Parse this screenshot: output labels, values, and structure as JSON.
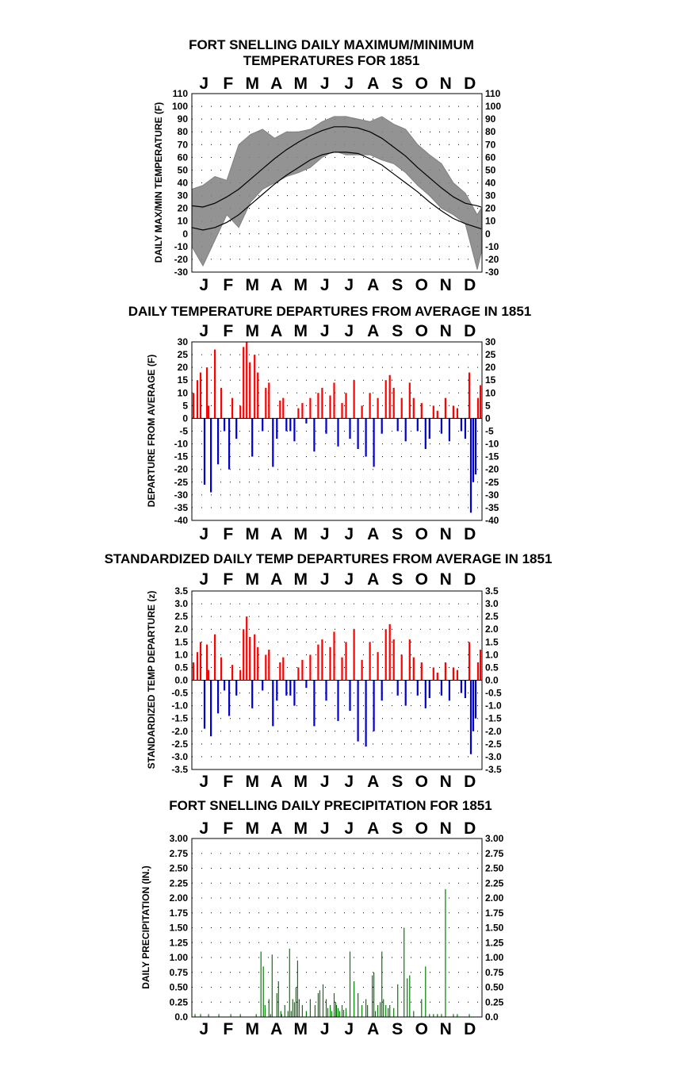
{
  "colors": {
    "positive": "#ff0000",
    "negative": "#0000cc",
    "temperature": "#808080",
    "precip": "#008000",
    "grid": "#000000"
  },
  "months": [
    "J",
    "F",
    "M",
    "A",
    "M",
    "J",
    "J",
    "A",
    "S",
    "O",
    "N",
    "D"
  ],
  "chart_data": [
    {
      "type": "line",
      "title": [
        "FORT SNELLING DAILY MAXIMUM/MINIMUM",
        "TEMPERATURES FOR 1851"
      ],
      "ylabel": "DAILY MAX/MIN TEMPERATURE (F)",
      "ylim": [
        -30,
        110
      ],
      "yticks": [
        "110",
        "100",
        "90",
        "80",
        "70",
        "60",
        "50",
        "40",
        "30",
        "20",
        "10",
        "0",
        "-10",
        "-20",
        "-30"
      ],
      "grid": "dotted",
      "x_unit": "day of year",
      "series": [
        {
          "name": "",
          "role": "average max",
          "x": [
            1,
            15,
            30,
            45,
            60,
            75,
            90,
            105,
            120,
            135,
            150,
            165,
            180,
            195,
            210,
            225,
            240,
            255,
            270,
            285,
            300,
            315,
            330,
            345,
            360,
            365
          ],
          "values": [
            22,
            21,
            24,
            29,
            35,
            43,
            51,
            59,
            66,
            72,
            77,
            81,
            84,
            84,
            83,
            80,
            75,
            68,
            61,
            52,
            44,
            36,
            29,
            24,
            22,
            21
          ]
        },
        {
          "name": "",
          "role": "average min",
          "x": [
            1,
            15,
            30,
            45,
            60,
            75,
            90,
            105,
            120,
            135,
            150,
            165,
            180,
            195,
            210,
            225,
            240,
            255,
            270,
            285,
            300,
            315,
            330,
            345,
            360,
            365
          ],
          "values": [
            5,
            3,
            5,
            9,
            15,
            23,
            31,
            39,
            46,
            52,
            58,
            62,
            64,
            64,
            63,
            59,
            54,
            47,
            40,
            33,
            25,
            18,
            12,
            8,
            5,
            4
          ]
        },
        {
          "name": "",
          "role": "observed max/min envelope",
          "x": [
            1,
            15,
            30,
            45,
            60,
            75,
            90,
            105,
            120,
            135,
            150,
            165,
            180,
            195,
            210,
            225,
            240,
            255,
            270,
            285,
            300,
            315,
            330,
            345,
            360,
            365
          ],
          "upper": [
            35,
            38,
            45,
            42,
            70,
            78,
            82,
            75,
            80,
            80,
            82,
            88,
            92,
            92,
            90,
            88,
            92,
            86,
            82,
            70,
            62,
            55,
            40,
            32,
            15,
            20
          ],
          "lower": [
            -10,
            -25,
            -5,
            15,
            5,
            25,
            35,
            40,
            45,
            48,
            52,
            60,
            65,
            62,
            62,
            62,
            58,
            55,
            48,
            38,
            30,
            20,
            15,
            8,
            -28,
            -15
          ]
        }
      ]
    },
    {
      "type": "bar",
      "title": "DAILY TEMPERATURE DEPARTURES FROM AVERAGE IN 1851",
      "ylabel": "DEPARTURE FROM AVERAGE (F)",
      "ylim": [
        -40,
        30
      ],
      "yticks": [
        "30",
        "25",
        "20",
        "15",
        "10",
        "5",
        "0",
        "-5",
        "-10",
        "-15",
        "-20",
        "-25",
        "-30",
        "-35",
        "-40"
      ],
      "grid": "dotted",
      "x_unit": "day of year",
      "x": [
        3,
        8,
        12,
        17,
        20,
        22,
        25,
        30,
        34,
        38,
        42,
        48,
        52,
        57,
        62,
        66,
        70,
        74,
        77,
        80,
        84,
        90,
        94,
        98,
        103,
        108,
        112,
        116,
        120,
        125,
        130,
        135,
        140,
        145,
        150,
        155,
        160,
        165,
        170,
        175,
        180,
        185,
        190,
        195,
        200,
        205,
        210,
        215,
        220,
        225,
        230,
        235,
        240,
        245,
        250,
        255,
        260,
        265,
        270,
        275,
        280,
        285,
        290,
        295,
        300,
        305,
        310,
        315,
        320,
        325,
        330,
        335,
        340,
        345,
        350,
        352,
        355,
        358,
        361,
        364
      ],
      "values": [
        10,
        15,
        18,
        -26,
        20,
        5,
        -29,
        27,
        -18,
        12,
        -5,
        -20,
        8,
        -8,
        5,
        28,
        30,
        22,
        -15,
        25,
        18,
        -5,
        12,
        14,
        -19,
        -8,
        7,
        8,
        -5,
        -5,
        -9,
        4,
        6,
        -2,
        8,
        -13,
        10,
        12,
        -6,
        9,
        14,
        -11,
        6,
        10,
        -8,
        15,
        -12,
        5,
        -15,
        10,
        -19,
        8,
        -6,
        15,
        17,
        12,
        -5,
        8,
        -9,
        14,
        8,
        -5,
        6,
        -12,
        -8,
        5,
        3,
        -6,
        8,
        -9,
        5,
        4,
        -5,
        -8,
        18,
        -37,
        -25,
        -22,
        8,
        13
      ]
    },
    {
      "type": "bar",
      "title": "STANDARDIZED DAILY TEMP DEPARTURES FROM AVERAGE IN 1851",
      "ylabel": "STANDARDIZED TEMP DEPARTURE (z)",
      "ylim": [
        -3.5,
        3.5
      ],
      "yticks": [
        "3.5",
        "3.0",
        "2.5",
        "2.0",
        "1.5",
        "1.0",
        "0.5",
        "0.0",
        "-0.5",
        "-1.0",
        "-1.5",
        "-2.0",
        "-2.5",
        "-3.0",
        "-3.5"
      ],
      "grid": "dotted",
      "x_unit": "day of year",
      "x": [
        3,
        8,
        12,
        17,
        20,
        22,
        25,
        30,
        34,
        38,
        42,
        48,
        52,
        57,
        62,
        66,
        70,
        74,
        77,
        80,
        84,
        90,
        94,
        98,
        103,
        108,
        112,
        116,
        120,
        125,
        130,
        135,
        140,
        145,
        150,
        155,
        160,
        165,
        170,
        175,
        180,
        185,
        190,
        195,
        200,
        205,
        210,
        215,
        220,
        225,
        230,
        235,
        240,
        245,
        250,
        255,
        260,
        265,
        270,
        275,
        280,
        285,
        290,
        295,
        300,
        305,
        310,
        315,
        320,
        325,
        330,
        335,
        340,
        345,
        350,
        352,
        355,
        358,
        361,
        364
      ],
      "values": [
        0.7,
        1.1,
        1.5,
        -1.9,
        1.4,
        0.4,
        -2.2,
        1.8,
        -1.3,
        0.9,
        -0.4,
        -1.4,
        0.6,
        -0.6,
        0.4,
        2.0,
        2.5,
        1.7,
        -1.1,
        1.8,
        1.3,
        -0.4,
        1.0,
        1.2,
        -1.8,
        -0.8,
        0.7,
        0.9,
        -0.6,
        -0.6,
        -1.0,
        0.5,
        0.8,
        -0.3,
        1.0,
        -1.8,
        1.4,
        1.6,
        -0.8,
        1.3,
        1.9,
        -1.6,
        0.9,
        1.5,
        -1.2,
        2.0,
        -2.4,
        0.8,
        -2.6,
        1.5,
        -2.0,
        1.1,
        -0.8,
        2.0,
        2.2,
        1.6,
        -0.6,
        1.0,
        -1.0,
        1.6,
        0.9,
        -0.6,
        0.7,
        -1.1,
        -0.7,
        0.5,
        0.3,
        -0.6,
        0.7,
        -0.8,
        0.5,
        0.4,
        -0.5,
        -0.7,
        1.5,
        -2.9,
        -2.0,
        -1.5,
        0.7,
        1.2
      ]
    },
    {
      "type": "bar",
      "title": "FORT SNELLING DAILY PRECIPITATION FOR 1851",
      "ylabel": "DAILY PRECIPITATION (IN.)",
      "ylim": [
        0,
        3
      ],
      "yticks": [
        "3.00",
        "2.75",
        "2.50",
        "2.25",
        "2.00",
        "1.75",
        "1.50",
        "1.25",
        "1.00",
        "0.75",
        "0.50",
        "0.25",
        "0.0"
      ],
      "grid": "dotted",
      "x_unit": "day of year",
      "x": [
        5,
        12,
        22,
        35,
        50,
        62,
        82,
        88,
        91,
        93,
        98,
        100,
        102,
        108,
        110,
        113,
        114,
        118,
        122,
        124,
        126,
        128,
        130,
        132,
        134,
        136,
        140,
        145,
        150,
        156,
        160,
        162,
        166,
        170,
        172,
        175,
        177,
        180,
        182,
        183,
        185,
        187,
        190,
        192,
        195,
        200,
        205,
        210,
        215,
        220,
        222,
        228,
        230,
        232,
        235,
        238,
        240,
        242,
        245,
        248,
        250,
        255,
        260,
        268,
        272,
        275,
        280,
        290,
        295,
        300,
        305,
        310,
        315,
        320,
        330,
        335,
        350
      ],
      "values": [
        0.05,
        0.05,
        0.05,
        0.05,
        0.05,
        0.05,
        0.05,
        1.1,
        0.85,
        0.2,
        0.3,
        0.05,
        1.05,
        0.4,
        0.6,
        0.1,
        0.05,
        0.2,
        0.1,
        1.15,
        0.1,
        0.3,
        0.25,
        0.5,
        0.95,
        0.3,
        0.2,
        0.1,
        0.3,
        0.2,
        0.4,
        0.45,
        0.55,
        0.3,
        0.15,
        0.2,
        0.1,
        0.4,
        0.25,
        0.2,
        0.15,
        0.1,
        0.2,
        0.12,
        0.15,
        1.1,
        0.6,
        0.4,
        0.2,
        0.3,
        0.2,
        0.7,
        0.75,
        0.1,
        0.2,
        0.25,
        1.1,
        0.3,
        0.2,
        0.15,
        0.2,
        0.15,
        0.55,
        1.5,
        0.65,
        0.7,
        0.1,
        0.3,
        0.85,
        0.05,
        0.05,
        0.05,
        0.05,
        2.15,
        0.05,
        0.05,
        0.05
      ]
    }
  ]
}
